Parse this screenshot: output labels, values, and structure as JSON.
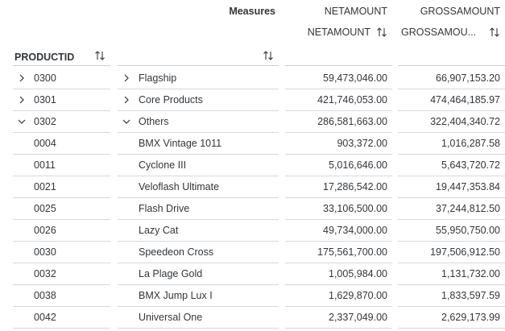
{
  "header": {
    "measures_label": "Measures",
    "columns": [
      {
        "top_label": "NETAMOUNT",
        "sub_label": "NETAMOUNT"
      },
      {
        "top_label": "GROSSAMOUNT",
        "sub_label": "GROSSAMOU..."
      }
    ],
    "row_dimension_label": "PRODUCTID"
  },
  "rows": [
    {
      "id": "0300",
      "name": "Flagship",
      "net": "59,473,046.00",
      "gross": "66,907,153.20",
      "expand_icon": "chevron-right-icon",
      "level": 0
    },
    {
      "id": "0301",
      "name": "Core Products",
      "net": "421,746,053.00",
      "gross": "474,464,185.97",
      "expand_icon": "chevron-right-icon",
      "level": 0
    },
    {
      "id": "0302",
      "name": "Others",
      "net": "286,581,663.00",
      "gross": "322,404,340.72",
      "expand_icon": "chevron-down-icon",
      "level": 0
    },
    {
      "id": "0004",
      "name": "BMX Vintage 1011",
      "net": "903,372.00",
      "gross": "1,016,287.58",
      "level": 1
    },
    {
      "id": "0011",
      "name": "Cyclone III",
      "net": "5,016,646.00",
      "gross": "5,643,720.72",
      "level": 1
    },
    {
      "id": "0021",
      "name": "Veloflash Ultimate",
      "net": "17,286,542.00",
      "gross": "19,447,353.84",
      "level": 1
    },
    {
      "id": "0025",
      "name": "Flash Drive",
      "net": "33,106,500.00",
      "gross": "37,244,812.50",
      "level": 1
    },
    {
      "id": "0026",
      "name": "Lazy Cat",
      "net": "49,734,000.00",
      "gross": "55,950,750.00",
      "level": 1
    },
    {
      "id": "0030",
      "name": "Speedeon Cross",
      "net": "175,561,700.00",
      "gross": "197,506,912.50",
      "level": 1
    },
    {
      "id": "0032",
      "name": "La Plage Gold",
      "net": "1,005,984.00",
      "gross": "1,131,732.00",
      "level": 1
    },
    {
      "id": "0038",
      "name": "BMX Jump Lux I",
      "net": "1,629,870.00",
      "gross": "1,833,597.59",
      "level": 1
    },
    {
      "id": "0042",
      "name": "Universal One",
      "net": "2,337,049.00",
      "gross": "2,629,173.99",
      "level": 1
    }
  ],
  "icons": {
    "sort": "sort-icon",
    "expand": "chevron-right-icon",
    "collapse": "chevron-down-icon"
  },
  "colors": {
    "text": "#32363a",
    "divider": "#c9d0d8"
  }
}
